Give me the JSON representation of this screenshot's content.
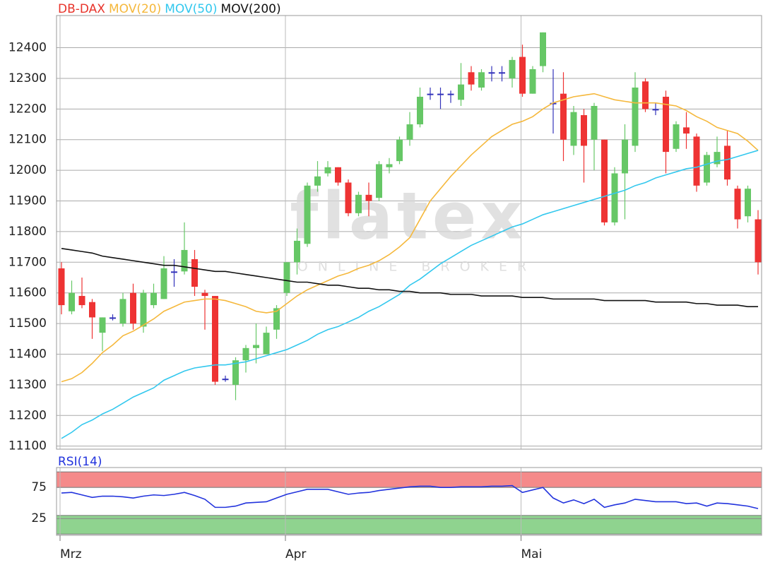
{
  "chart_data": [
    {
      "type": "candlestick",
      "watermark": {
        "text": "flatex",
        "subtext": "ONLINE BROKER"
      },
      "ylim": [
        11090,
        12505
      ],
      "yticks": [
        11100,
        11200,
        11300,
        11400,
        11500,
        11600,
        11700,
        11800,
        11900,
        12000,
        12100,
        12200,
        12300,
        12400
      ],
      "grid": true,
      "candles": {
        "name": "DB-DAX",
        "color": "#e8332a",
        "up_color": "#66c766",
        "down_color": "#ee3333",
        "doji_color": "#3333bb",
        "open": [
          11680,
          11540,
          11590,
          11570,
          11470,
          11520,
          11500,
          11600,
          11490,
          11560,
          11580,
          11670,
          11670,
          11710,
          11600,
          11590,
          11320,
          11300,
          11380,
          11420,
          11400,
          11480,
          11600,
          11700,
          11760,
          11950,
          11990,
          12010,
          11960,
          11860,
          11920,
          11910,
          12010,
          12030,
          12100,
          12150,
          12250,
          12250,
          12250,
          12230,
          12320,
          12270,
          12320,
          12320,
          12300,
          12370,
          12250,
          12340,
          12220,
          12250,
          12080,
          12180,
          12100,
          12100,
          11830,
          11990,
          12080,
          12290,
          12200,
          12240,
          12070,
          12140,
          12110,
          11960,
          12020,
          12080,
          11940,
          11850,
          11840
        ],
        "high": [
          11700,
          11640,
          11650,
          11580,
          11520,
          11530,
          11600,
          11630,
          11610,
          11630,
          11720,
          11710,
          11830,
          11740,
          11610,
          11590,
          11330,
          11390,
          11430,
          11500,
          11490,
          11560,
          11700,
          11810,
          11960,
          12030,
          12030,
          12010,
          11970,
          11930,
          11960,
          12030,
          12040,
          12110,
          12190,
          12270,
          12270,
          12270,
          12260,
          12350,
          12340,
          12330,
          12340,
          12340,
          12370,
          12410,
          12340,
          12450,
          12330,
          12320,
          12210,
          12200,
          12220,
          12100,
          12010,
          12150,
          12320,
          12300,
          12220,
          12260,
          12160,
          12190,
          12120,
          12060,
          12110,
          12130,
          11950,
          11950,
          11870
        ],
        "low": [
          11530,
          11530,
          11550,
          11450,
          11410,
          11510,
          11490,
          11480,
          11470,
          11550,
          11580,
          11620,
          11660,
          11590,
          11480,
          11300,
          11310,
          11250,
          11340,
          11370,
          11400,
          11450,
          11590,
          11660,
          11750,
          11930,
          11980,
          11950,
          11850,
          11850,
          11850,
          11900,
          11990,
          12020,
          12080,
          12140,
          12230,
          12200,
          12220,
          12210,
          12260,
          12260,
          12290,
          12290,
          12270,
          12240,
          12250,
          12320,
          12120,
          12030,
          12050,
          11960,
          12000,
          11820,
          11820,
          11840,
          12060,
          12190,
          12180,
          11990,
          12060,
          12070,
          11930,
          11950,
          12010,
          11950,
          11810,
          11830,
          11660
        ],
        "close": [
          11560,
          11600,
          11560,
          11520,
          11520,
          11520,
          11580,
          11500,
          11600,
          11600,
          11680,
          11670,
          11740,
          11620,
          11590,
          11310,
          11320,
          11380,
          11420,
          11430,
          11470,
          11550,
          11700,
          11770,
          11950,
          11980,
          12010,
          11960,
          11860,
          11920,
          11900,
          12020,
          12020,
          12100,
          12150,
          12240,
          12250,
          12250,
          12250,
          12280,
          12280,
          12320,
          12320,
          12320,
          12360,
          12250,
          12330,
          12450,
          12220,
          12100,
          12190,
          12080,
          12210,
          11830,
          11990,
          12100,
          12270,
          12200,
          12200,
          12060,
          12150,
          12120,
          11950,
          12050,
          12060,
          11970,
          11840,
          11940,
          11700
        ]
      },
      "series": [
        {
          "name": "MOV(20)",
          "color": "#f5b83c",
          "values": [
            11310,
            11320,
            11340,
            11370,
            11405,
            11430,
            11460,
            11475,
            11495,
            11515,
            11540,
            11555,
            11570,
            11575,
            11580,
            11580,
            11575,
            11565,
            11555,
            11540,
            11535,
            11540,
            11565,
            11590,
            11610,
            11625,
            11640,
            11655,
            11665,
            11680,
            11690,
            11705,
            11725,
            11750,
            11780,
            11840,
            11900,
            11940,
            11980,
            12015,
            12050,
            12080,
            12110,
            12130,
            12150,
            12160,
            12175,
            12200,
            12220,
            12230,
            12240,
            12245,
            12250,
            12240,
            12230,
            12225,
            12220,
            12220,
            12220,
            12215,
            12210,
            12195,
            12175,
            12160,
            12140,
            12130,
            12120,
            12095,
            12065
          ]
        },
        {
          "name": "MOV(50)",
          "color": "#33c8ee",
          "values": [
            11125,
            11145,
            11170,
            11185,
            11205,
            11220,
            11240,
            11260,
            11275,
            11290,
            11315,
            11330,
            11345,
            11355,
            11360,
            11365,
            11365,
            11370,
            11375,
            11385,
            11395,
            11405,
            11415,
            11430,
            11445,
            11465,
            11480,
            11490,
            11505,
            11520,
            11540,
            11555,
            11575,
            11595,
            11625,
            11645,
            11670,
            11695,
            11715,
            11735,
            11755,
            11770,
            11785,
            11800,
            11815,
            11825,
            11840,
            11855,
            11865,
            11875,
            11885,
            11895,
            11905,
            11915,
            11925,
            11935,
            11950,
            11960,
            11975,
            11985,
            11995,
            12005,
            12010,
            12020,
            12030,
            12035,
            12045,
            12055,
            12065
          ]
        },
        {
          "name": "MOV(200)",
          "color": "#111111",
          "values": [
            11745,
            11740,
            11735,
            11730,
            11720,
            11715,
            11710,
            11705,
            11700,
            11695,
            11690,
            11690,
            11685,
            11680,
            11675,
            11670,
            11670,
            11665,
            11660,
            11655,
            11650,
            11645,
            11640,
            11635,
            11635,
            11630,
            11625,
            11625,
            11620,
            11615,
            11615,
            11610,
            11610,
            11605,
            11605,
            11600,
            11600,
            11600,
            11595,
            11595,
            11595,
            11590,
            11590,
            11590,
            11590,
            11585,
            11585,
            11585,
            11580,
            11580,
            11580,
            11580,
            11580,
            11575,
            11575,
            11575,
            11575,
            11575,
            11570,
            11570,
            11570,
            11570,
            11565,
            11565,
            11560,
            11560,
            11560,
            11555,
            11555
          ]
        }
      ]
    },
    {
      "type": "line",
      "ylim": [
        -2,
        107
      ],
      "yticks": [
        25,
        75
      ],
      "bands": [
        {
          "from": 75,
          "to": 100,
          "color": "#f58a8a"
        },
        {
          "from": 0,
          "to": 30,
          "color": "#8fd38f"
        }
      ],
      "categories": [
        "Mrz",
        null,
        null,
        null,
        null,
        null,
        null,
        null,
        null,
        null,
        null,
        null,
        null,
        null,
        null,
        null,
        null,
        null,
        null,
        null,
        null,
        null,
        "Apr",
        null,
        null,
        null,
        null,
        null,
        null,
        null,
        null,
        null,
        null,
        null,
        null,
        null,
        null,
        null,
        null,
        null,
        null,
        null,
        null,
        null,
        null,
        "Mai",
        null,
        null,
        null,
        null,
        null,
        null,
        null,
        null,
        null,
        null,
        null,
        null,
        null,
        null,
        null,
        null,
        null,
        null,
        null,
        null,
        null,
        null,
        null
      ],
      "series": [
        {
          "name": "RSI(14)",
          "color": "#2233dd",
          "values": [
            66,
            67,
            63,
            59,
            61,
            61,
            60,
            58,
            61,
            63,
            62,
            64,
            67,
            62,
            56,
            43,
            43,
            45,
            50,
            51,
            52,
            58,
            64,
            68,
            72,
            72,
            72,
            68,
            64,
            66,
            67,
            70,
            72,
            74,
            76,
            77,
            77,
            75,
            75,
            76,
            76,
            76,
            77,
            77,
            78,
            67,
            71,
            75,
            58,
            50,
            55,
            49,
            56,
            43,
            47,
            50,
            56,
            54,
            52,
            52,
            52,
            49,
            50,
            45,
            50,
            49,
            47,
            45,
            41
          ]
        }
      ]
    }
  ]
}
